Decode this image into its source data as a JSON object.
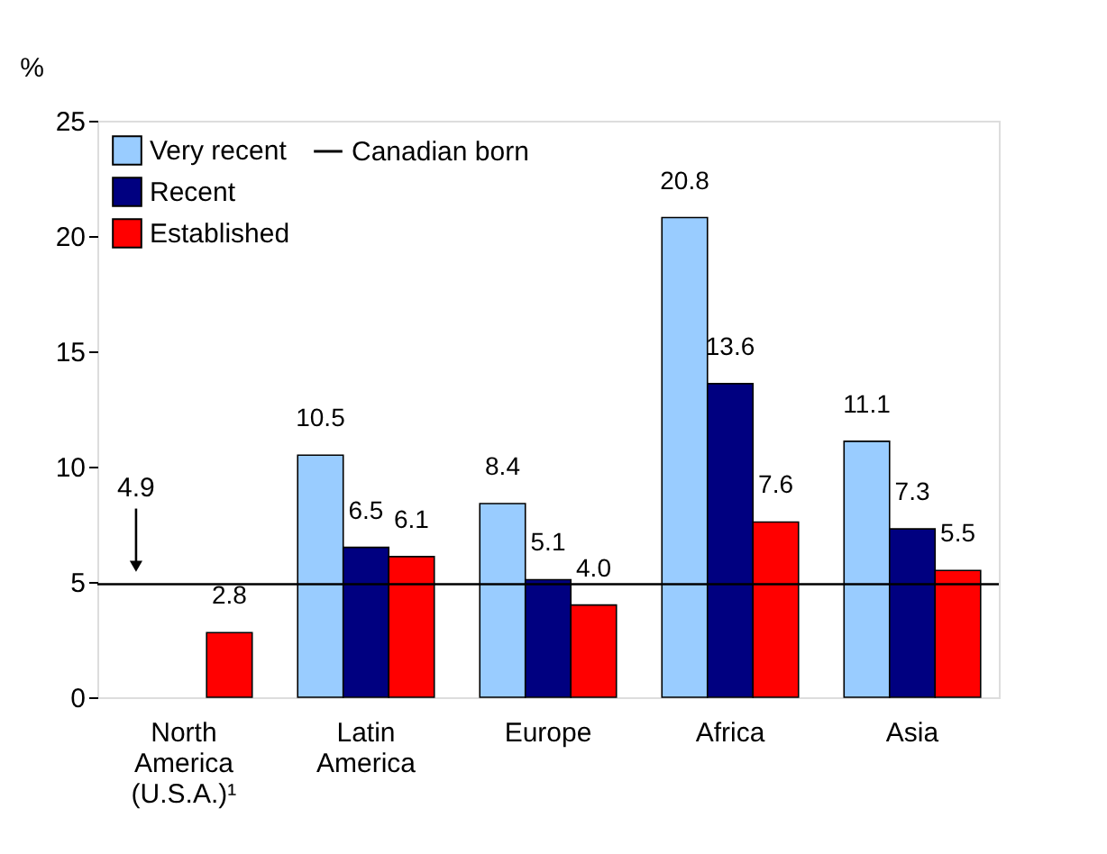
{
  "chart_data": {
    "type": "bar",
    "ylabel": "%",
    "categories": [
      "North America (U.S.A.)¹",
      "Latin America",
      "Europe",
      "Africa",
      "Asia"
    ],
    "series": [
      {
        "name": "Very recent",
        "color": "#99ccff",
        "values": [
          null,
          10.5,
          8.4,
          20.8,
          11.1
        ],
        "value_labels": [
          null,
          "10.5",
          "8.4",
          "20.8",
          "11.1"
        ]
      },
      {
        "name": "Recent",
        "color": "#000080",
        "values": [
          null,
          6.5,
          5.1,
          13.6,
          7.3
        ],
        "value_labels": [
          null,
          "6.5",
          "5.1",
          "13.6",
          "7.3"
        ]
      },
      {
        "name": "Established",
        "color": "#ff0000",
        "values": [
          2.8,
          6.1,
          4.0,
          7.6,
          5.5
        ],
        "value_labels": [
          "2.8",
          "6.1",
          "4.0",
          "7.6",
          "5.5"
        ]
      }
    ],
    "ref_lines": [
      {
        "axis": "y",
        "value": 4.9,
        "label": "Canadian born",
        "color": "#000000"
      }
    ],
    "annotations": [
      "4.9"
    ],
    "ylim": [
      0,
      25
    ],
    "yticks": [
      0,
      5,
      10,
      15,
      20,
      25
    ],
    "grid": false,
    "legend": "top left"
  }
}
